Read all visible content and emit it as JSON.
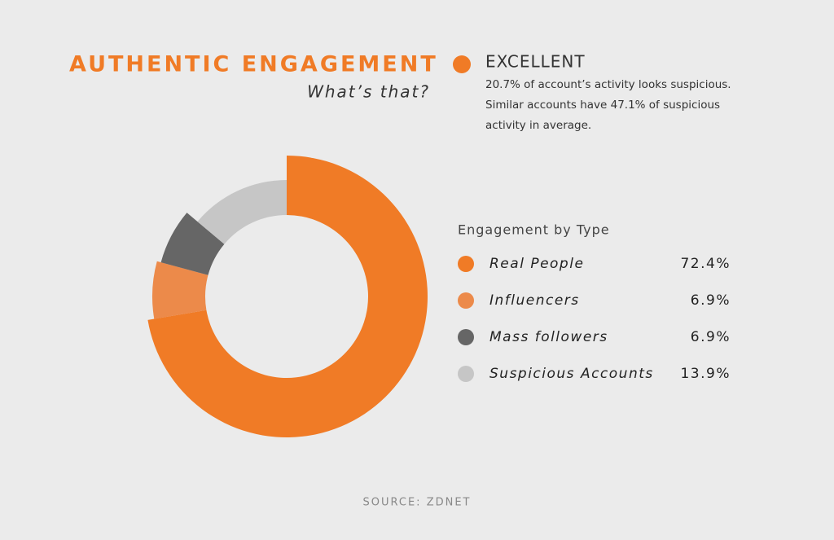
{
  "chart_data": {
    "type": "pie",
    "title": "AUTHENTIC ENGAGEMENT",
    "subtitle": "What’s that?",
    "rating": "EXCELLENT",
    "description": [
      "20.7% of account’s activity looks suspicious.",
      "Similar accounts have 47.1% of suspicious",
      "activity in average."
    ],
    "legend_title": "Engagement by Type",
    "categories": [
      "Real People",
      "Influencers",
      "Mass followers",
      "Suspicious Accounts"
    ],
    "values": [
      72.4,
      6.9,
      6.9,
      13.9
    ],
    "value_labels": [
      "72.4%",
      "6.9%",
      "6.9%",
      "13.9%"
    ],
    "colors": [
      "#f07b26",
      "#ec8a4a",
      "#666666",
      "#c6c6c6"
    ],
    "source": "SOURCE: ZDNET"
  }
}
